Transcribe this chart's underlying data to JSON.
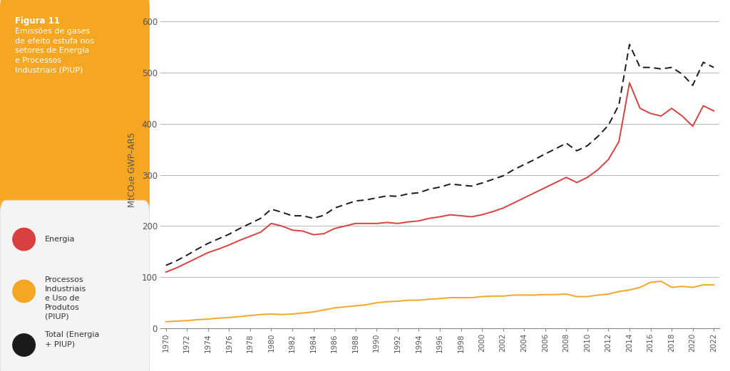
{
  "years": [
    1970,
    1971,
    1972,
    1973,
    1974,
    1975,
    1976,
    1977,
    1978,
    1979,
    1980,
    1981,
    1982,
    1983,
    1984,
    1985,
    1986,
    1987,
    1988,
    1989,
    1990,
    1991,
    1992,
    1993,
    1994,
    1995,
    1996,
    1997,
    1998,
    1999,
    2000,
    2001,
    2002,
    2003,
    2004,
    2005,
    2006,
    2007,
    2008,
    2009,
    2010,
    2011,
    2012,
    2013,
    2014,
    2015,
    2016,
    2017,
    2018,
    2019,
    2020,
    2021,
    2022
  ],
  "energia": [
    110,
    118,
    128,
    138,
    148,
    155,
    163,
    172,
    180,
    188,
    205,
    200,
    192,
    190,
    183,
    185,
    195,
    200,
    205,
    205,
    205,
    207,
    205,
    208,
    210,
    215,
    218,
    222,
    220,
    218,
    222,
    228,
    235,
    245,
    255,
    265,
    275,
    285,
    295,
    285,
    295,
    310,
    330,
    365,
    480,
    430,
    420,
    415,
    430,
    415,
    395,
    435,
    425
  ],
  "piup": [
    13,
    14,
    15,
    17,
    18,
    20,
    21,
    23,
    25,
    27,
    28,
    27,
    28,
    30,
    32,
    36,
    40,
    42,
    44,
    46,
    50,
    52,
    53,
    55,
    55,
    57,
    58,
    60,
    60,
    60,
    62,
    63,
    63,
    65,
    65,
    65,
    66,
    66,
    67,
    62,
    62,
    65,
    67,
    72,
    75,
    80,
    90,
    92,
    80,
    82,
    80,
    85,
    85
  ],
  "total": [
    123,
    132,
    143,
    155,
    166,
    175,
    184,
    195,
    205,
    215,
    233,
    227,
    220,
    220,
    215,
    221,
    235,
    242,
    249,
    251,
    255,
    259,
    258,
    263,
    265,
    272,
    276,
    282,
    280,
    278,
    284,
    291,
    298,
    310,
    320,
    330,
    341,
    351,
    362,
    347,
    357,
    375,
    397,
    437,
    555,
    510,
    510,
    507,
    510,
    497,
    475,
    520,
    510
  ],
  "ylabel": "MtCO₂e GWP–AR5",
  "ylim": [
    0,
    620
  ],
  "yticks": [
    0,
    100,
    200,
    300,
    400,
    500,
    600
  ],
  "energia_color": "#d94040",
  "piup_color": "#f5a623",
  "total_color": "#1a1a1a",
  "title_box_color": "#f5a623",
  "title_bold": "Figura 11",
  "title_text": "Emissões de gases\nde efeito estufa nos\nsetores de Energia\ne Processos\nIndustriais (PIUP)",
  "legend_energia": "Energia",
  "legend_piup": "Processos\nIndustriais\ne Uso de\nProdutos\n(PIUP)",
  "legend_total": "Total (Energia\n+ PIUP)",
  "bg_color": "#ffffff"
}
